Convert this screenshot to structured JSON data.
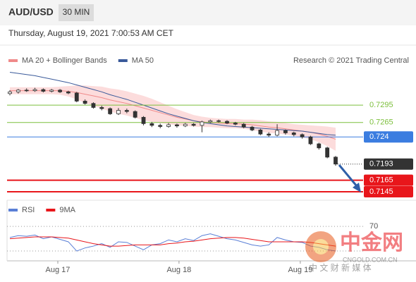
{
  "header": {
    "symbol": "AUD/USD",
    "timeframe": "30 MIN",
    "timestamp": "Thursday, August 19, 2021 7:00:53 AM CET"
  },
  "watermark": {
    "logo": "中金网",
    "site": "CNGOLD.COM.CN",
    "tagline": "中 文 财 新 媒 体"
  },
  "chart_data": [
    {
      "type": "candlestick",
      "legend": [
        {
          "name": "MA 20 + Bollinger Bands",
          "color": "#f08a8a"
        },
        {
          "name": "MA 50",
          "color": "#3a5a9a"
        }
      ],
      "credit": "Research © 2021 Trading Central",
      "ylim": [
        0.71316,
        0.7355
      ],
      "xlim": [
        0,
        39
      ],
      "xticks": [
        {
          "value": 5.74,
          "label": "Aug 17"
        },
        {
          "value": 20.25,
          "label": "Aug 18"
        },
        {
          "value": 34.77,
          "label": "Aug 19"
        }
      ],
      "up_color": "#ffffff",
      "down_color": "#333333",
      "levels": [
        {
          "value": 0.7295,
          "color": "#7cbf3c",
          "boxed": false,
          "style": "thin"
        },
        {
          "value": 0.7265,
          "color": "#7cbf3c",
          "boxed": false,
          "style": "thin"
        },
        {
          "value": 0.724,
          "color": "#3b7de0",
          "boxed": true,
          "style": "thin"
        },
        {
          "value": 0.7193,
          "color": "#333333",
          "boxed": true,
          "style": "dotted"
        },
        {
          "value": 0.7165,
          "color": "#e8161b",
          "boxed": true,
          "style": "thick"
        },
        {
          "value": 0.7145,
          "color": "#e8161b",
          "boxed": true,
          "style": "thick"
        }
      ],
      "open": [
        0.7315,
        0.7318,
        0.7321,
        0.732,
        0.7322,
        0.7319,
        0.7321,
        0.7318,
        0.7316,
        0.7302,
        0.7298,
        0.7291,
        0.7289,
        0.728,
        0.7286,
        0.7284,
        0.7274,
        0.7263,
        0.726,
        0.7258,
        0.7261,
        0.7259,
        0.7262,
        0.726,
        0.7266,
        0.7268,
        0.7267,
        0.7264,
        0.7262,
        0.7257,
        0.7252,
        0.7245,
        0.7243,
        0.7251,
        0.7247,
        0.7244,
        0.724,
        0.7228,
        0.7221,
        0.7205
      ],
      "high": [
        0.7321,
        0.7323,
        0.7324,
        0.7325,
        0.7324,
        0.7323,
        0.7323,
        0.732,
        0.7318,
        0.7305,
        0.73,
        0.7294,
        0.7291,
        0.729,
        0.7289,
        0.7286,
        0.7276,
        0.7266,
        0.7263,
        0.7264,
        0.7263,
        0.7264,
        0.7264,
        0.7268,
        0.727,
        0.727,
        0.7269,
        0.7266,
        0.7264,
        0.7259,
        0.7254,
        0.7248,
        0.7262,
        0.7253,
        0.7249,
        0.7246,
        0.7242,
        0.723,
        0.7223,
        0.7207
      ],
      "low": [
        0.7312,
        0.7315,
        0.7318,
        0.7318,
        0.7317,
        0.7317,
        0.7316,
        0.7314,
        0.73,
        0.7296,
        0.7289,
        0.7286,
        0.7278,
        0.7278,
        0.7281,
        0.7272,
        0.726,
        0.7257,
        0.7255,
        0.7256,
        0.7256,
        0.7257,
        0.7258,
        0.7248,
        0.7264,
        0.7265,
        0.7262,
        0.726,
        0.7255,
        0.725,
        0.7243,
        0.724,
        0.7241,
        0.7244,
        0.7241,
        0.7237,
        0.7226,
        0.7218,
        0.7203,
        0.719
      ],
      "close": [
        0.7318,
        0.7321,
        0.732,
        0.7322,
        0.7319,
        0.7321,
        0.7318,
        0.7316,
        0.7302,
        0.7298,
        0.7291,
        0.7289,
        0.728,
        0.7286,
        0.7284,
        0.7274,
        0.7263,
        0.726,
        0.7258,
        0.7261,
        0.7259,
        0.7262,
        0.726,
        0.7266,
        0.7268,
        0.7267,
        0.7264,
        0.7262,
        0.7257,
        0.7252,
        0.7245,
        0.7243,
        0.7251,
        0.7247,
        0.7244,
        0.724,
        0.7228,
        0.7221,
        0.7205,
        0.7193
      ],
      "ma20": [
        0.732,
        0.732,
        0.732,
        0.732,
        0.732,
        0.732,
        0.732,
        0.7319,
        0.7317,
        0.7314,
        0.7311,
        0.7308,
        0.7304,
        0.7301,
        0.7298,
        0.7294,
        0.729,
        0.7286,
        0.7282,
        0.7278,
        0.7274,
        0.7271,
        0.7268,
        0.7266,
        0.7265,
        0.7264,
        0.7263,
        0.7263,
        0.7262,
        0.7261,
        0.7259,
        0.7257,
        0.7256,
        0.7254,
        0.7252,
        0.725,
        0.7248,
        0.7245,
        0.7241,
        0.7236
      ],
      "upper": [
        0.7326,
        0.7326,
        0.7326,
        0.7326,
        0.7326,
        0.7326,
        0.7327,
        0.7328,
        0.7329,
        0.7329,
        0.7328,
        0.7327,
        0.7324,
        0.7322,
        0.7319,
        0.7315,
        0.7311,
        0.7306,
        0.73,
        0.7294,
        0.7288,
        0.7283,
        0.7278,
        0.7275,
        0.7273,
        0.7272,
        0.7271,
        0.7271,
        0.727,
        0.727,
        0.7269,
        0.7267,
        0.7266,
        0.7264,
        0.7262,
        0.7261,
        0.726,
        0.7259,
        0.7258,
        0.7256
      ],
      "lower": [
        0.7314,
        0.7314,
        0.7314,
        0.7314,
        0.7314,
        0.7314,
        0.7313,
        0.731,
        0.7305,
        0.7299,
        0.7294,
        0.7289,
        0.7284,
        0.728,
        0.7277,
        0.7273,
        0.7269,
        0.7266,
        0.7264,
        0.7262,
        0.726,
        0.7259,
        0.7258,
        0.7257,
        0.7257,
        0.7256,
        0.7255,
        0.7255,
        0.7254,
        0.7252,
        0.7249,
        0.7247,
        0.7246,
        0.7244,
        0.7242,
        0.7239,
        0.7236,
        0.7231,
        0.7224,
        0.7216
      ],
      "ma50": [
        0.7352,
        0.735,
        0.7348,
        0.7346,
        0.7343,
        0.734,
        0.7337,
        0.7334,
        0.733,
        0.7326,
        0.7322,
        0.7318,
        0.7313,
        0.7309,
        0.7305,
        0.73,
        0.7295,
        0.729,
        0.7285,
        0.728,
        0.7276,
        0.7272,
        0.7268,
        0.7265,
        0.7263,
        0.7261,
        0.7259,
        0.7258,
        0.7257,
        0.7256,
        0.7255,
        0.7254,
        0.7253,
        0.7252,
        0.7251,
        0.725,
        0.7248,
        0.7246,
        0.7244,
        0.7243
      ]
    },
    {
      "type": "line",
      "ylim": [
        14,
        100
      ],
      "yticks": [
        70
      ],
      "ref_lines": [
        70,
        30
      ],
      "series": [
        {
          "name": "RSI",
          "color": "#5a7fd6",
          "values": [
            52,
            55,
            54,
            56,
            50,
            53,
            49,
            45,
            30,
            35,
            38,
            42,
            36,
            45,
            44,
            38,
            32,
            40,
            42,
            48,
            45,
            50,
            47,
            55,
            58,
            54,
            50,
            48,
            44,
            40,
            38,
            40,
            52,
            48,
            45,
            44,
            38,
            36,
            32,
            30
          ]
        },
        {
          "name": "9MA",
          "color": "#e8161b",
          "values": [
            50,
            51,
            52,
            53,
            53,
            53,
            52,
            51,
            48,
            45,
            42,
            40,
            38,
            38,
            39,
            40,
            40,
            40,
            40,
            42,
            43,
            45,
            46,
            48,
            50,
            51,
            52,
            52,
            51,
            49,
            47,
            45,
            45,
            45,
            45,
            45,
            44,
            42,
            40,
            38
          ]
        }
      ]
    }
  ]
}
